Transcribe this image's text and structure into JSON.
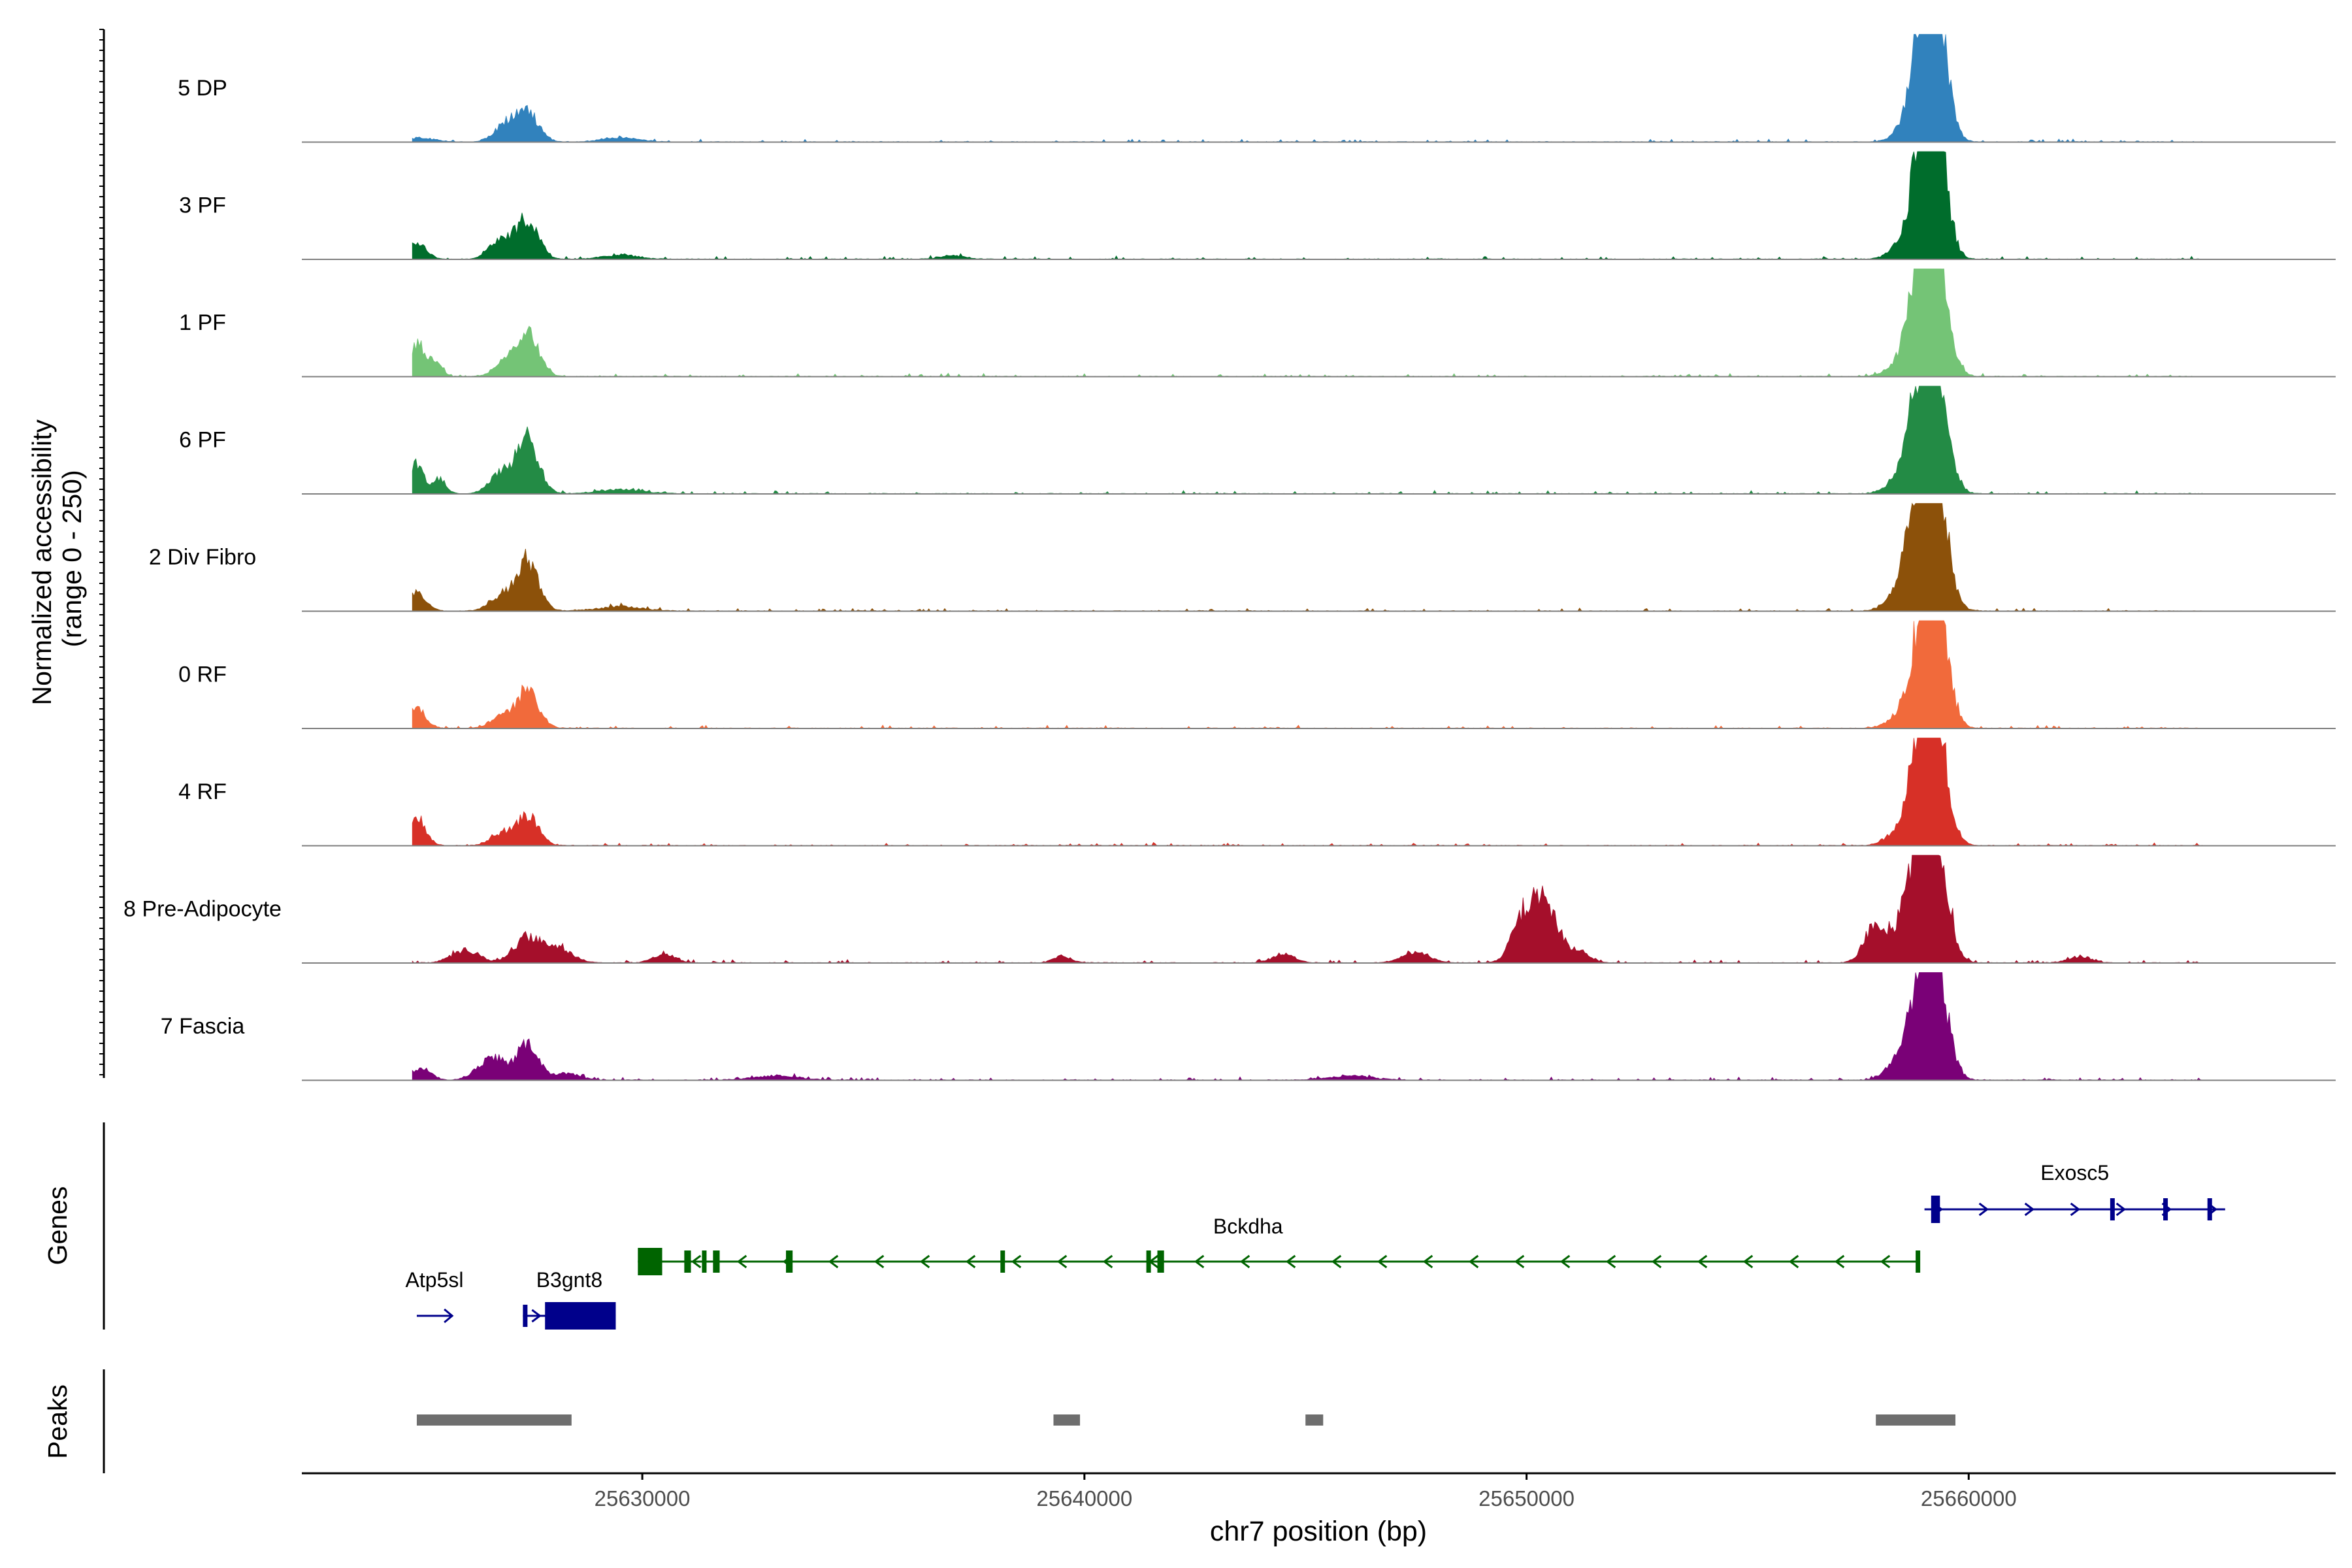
{
  "chart_data": {
    "type": "area",
    "title": "",
    "chromosome": "chr7",
    "xlabel": "chr7 position (bp)",
    "xlim": [
      25622300,
      25668300
    ],
    "x_ticks": [
      25630000,
      25640000,
      25650000,
      25660000
    ],
    "x_tick_labels": [
      "25630000",
      "25640000",
      "25650000",
      "25660000"
    ],
    "coverage": {
      "ylabel_line1": "Normalized accessibility",
      "ylabel_line2": "(range 0 - 250)",
      "ylim": [
        0,
        250
      ],
      "series": [
        {
          "name": "5 DP",
          "color": "#3182BD",
          "peaks": [
            [
              25627400,
              250,
              70
            ],
            [
              25626900,
              250,
              40
            ],
            [
              25659100,
              250,
              240
            ],
            [
              25659300,
              250,
              190
            ],
            [
              25658900,
              250,
              130
            ],
            [
              25658500,
              250,
              18
            ],
            [
              25629500,
              400,
              10
            ],
            [
              25625000,
              300,
              9
            ]
          ]
        },
        {
          "name": "3 PF",
          "color": "#006D2C",
          "peaks": [
            [
              25627400,
              250,
              95
            ],
            [
              25626800,
              250,
              45
            ],
            [
              25624900,
              200,
              40
            ],
            [
              25659100,
              250,
              230
            ],
            [
              25659300,
              250,
              160
            ],
            [
              25658900,
              250,
              150
            ],
            [
              25658400,
              250,
              22
            ],
            [
              25629500,
              400,
              10
            ],
            [
              25637000,
              300,
              8
            ]
          ]
        },
        {
          "name": "1 PF",
          "color": "#74C476",
          "peaks": [
            [
              25627400,
              250,
              100
            ],
            [
              25626900,
              250,
              30
            ],
            [
              25624900,
              150,
              80
            ],
            [
              25625300,
              150,
              40
            ],
            [
              25659100,
              250,
              250
            ],
            [
              25658800,
              250,
              150
            ],
            [
              25659350,
              250,
              150
            ],
            [
              25658300,
              250,
              15
            ]
          ]
        },
        {
          "name": "6 PF",
          "color": "#238B45",
          "peaks": [
            [
              25627400,
              250,
              130
            ],
            [
              25626800,
              250,
              45
            ],
            [
              25624900,
              150,
              70
            ],
            [
              25625400,
              150,
              35
            ],
            [
              25659100,
              250,
              230
            ],
            [
              25658800,
              250,
              150
            ],
            [
              25659350,
              250,
              160
            ],
            [
              25658300,
              250,
              20
            ],
            [
              25629500,
              500,
              10
            ]
          ]
        },
        {
          "name": "2 Div Fibro",
          "color": "#8C510A",
          "peaks": [
            [
              25627400,
              250,
              120
            ],
            [
              25626800,
              250,
              35
            ],
            [
              25624900,
              200,
              45
            ],
            [
              25659100,
              250,
              250
            ],
            [
              25658800,
              250,
              180
            ],
            [
              25659350,
              250,
              150
            ],
            [
              25658300,
              250,
              25
            ],
            [
              25629500,
              500,
              10
            ]
          ]
        },
        {
          "name": "0 RF",
          "color": "#F16A3B",
          "peaks": [
            [
              25627400,
              250,
              90
            ],
            [
              25626800,
              250,
              25
            ],
            [
              25624900,
              200,
              45
            ],
            [
              25659100,
              250,
              250
            ],
            [
              25658800,
              250,
              100
            ],
            [
              25659350,
              250,
              150
            ],
            [
              25658300,
              250,
              15
            ]
          ]
        },
        {
          "name": "4 RF",
          "color": "#D73027",
          "peaks": [
            [
              25627400,
              250,
              70
            ],
            [
              25626800,
              250,
              25
            ],
            [
              25624900,
              200,
              65
            ],
            [
              25659100,
              250,
              220
            ],
            [
              25658800,
              250,
              130
            ],
            [
              25659350,
              250,
              140
            ],
            [
              25658300,
              250,
              20
            ]
          ]
        },
        {
          "name": "8 Pre-Adipocyte",
          "color": "#A50F2B",
          "peaks": [
            [
              25627400,
              300,
              60
            ],
            [
              25626000,
              300,
              30
            ],
            [
              25628100,
              300,
              35
            ],
            [
              25630500,
              250,
              20
            ],
            [
              25639500,
              200,
              15
            ],
            [
              25644500,
              250,
              20
            ],
            [
              25647500,
              300,
              25
            ],
            [
              25649900,
              250,
              90
            ],
            [
              25650300,
              250,
              120
            ],
            [
              25650700,
              250,
              60
            ],
            [
              25651300,
              200,
              20
            ],
            [
              25657900,
              250,
              90
            ],
            [
              25658500,
              250,
              60
            ],
            [
              25659100,
              250,
              240
            ],
            [
              25658800,
              250,
              140
            ],
            [
              25659350,
              250,
              150
            ],
            [
              25662500,
              250,
              15
            ],
            [
              25665800,
              200,
              15
            ]
          ]
        },
        {
          "name": "7 Fascia",
          "color": "#7A0177",
          "peaks": [
            [
              25627400,
              250,
              80
            ],
            [
              25626600,
              300,
              55
            ],
            [
              25625000,
              200,
              30
            ],
            [
              25628300,
              300,
              15
            ],
            [
              25659100,
              250,
              200
            ],
            [
              25658800,
              250,
              130
            ],
            [
              25659350,
              250,
              140
            ],
            [
              25658300,
              250,
              30
            ],
            [
              25633000,
              500,
              10
            ],
            [
              25646000,
              500,
              10
            ]
          ]
        }
      ]
    },
    "genes": {
      "panel_label": "Genes",
      "items": [
        {
          "name": "Atp5sl",
          "strand": "+",
          "start": 25624900,
          "end": 25625700,
          "row": 2,
          "color": "#00008B",
          "exons": []
        },
        {
          "name": "B3gnt8",
          "strand": "+",
          "start": 25627300,
          "end": 25629400,
          "row": 2,
          "color": "#00008B",
          "exons": [
            [
              25627300,
              25627400,
              "thin"
            ],
            [
              25627800,
              25629400,
              "thick"
            ]
          ]
        },
        {
          "name": "Bckdha",
          "strand": "-",
          "start": 25629900,
          "end": 25658900,
          "row": 1,
          "color": "#006400",
          "exons": [
            [
              25629900,
              25630450,
              "thick"
            ],
            [
              25630950,
              25631100,
              "thin"
            ],
            [
              25631350,
              25631450,
              "thin"
            ],
            [
              25631600,
              25631750,
              "thin"
            ],
            [
              25633250,
              25633400,
              "thin"
            ],
            [
              25638100,
              25638200,
              "thin"
            ],
            [
              25641400,
              25641500,
              "thin"
            ],
            [
              25641650,
              25641800,
              "thin"
            ],
            [
              25658800,
              25658900,
              "thin"
            ]
          ]
        },
        {
          "name": "Exosc5",
          "strand": "+",
          "start": 25659000,
          "end": 25665800,
          "row": 0,
          "color": "#00008B",
          "exons": [
            [
              25659150,
              25659350,
              "thick"
            ],
            [
              25663200,
              25663300,
              "thin"
            ],
            [
              25664400,
              25664500,
              "thin"
            ],
            [
              25665400,
              25665500,
              "thin"
            ]
          ]
        }
      ]
    },
    "peaks": {
      "panel_label": "Peaks",
      "color": "#6E6E6E",
      "regions": [
        [
          25624900,
          25628400
        ],
        [
          25639300,
          25639900
        ],
        [
          25645000,
          25645400
        ],
        [
          25657900,
          25659700
        ]
      ]
    }
  }
}
